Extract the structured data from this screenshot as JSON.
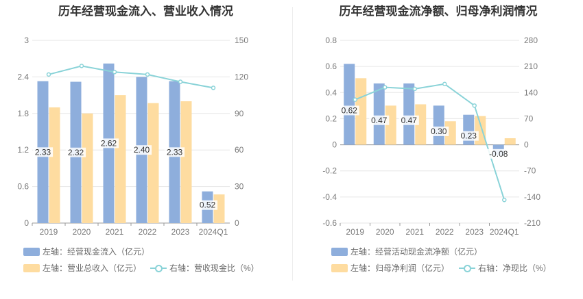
{
  "chart_data": [
    {
      "type": "bar",
      "title": "历年经营现金流入、营业收入情况",
      "categories": [
        "2019",
        "2020",
        "2021",
        "2022",
        "2023",
        "2024Q1"
      ],
      "series": [
        {
          "name": "左轴：经营现金流入（亿元）",
          "axis": "left",
          "type": "bar",
          "color": "#8eaedc",
          "values": [
            2.33,
            2.32,
            2.62,
            2.4,
            2.33,
            0.52
          ],
          "labels": [
            "2.33",
            "2.32",
            "2.62",
            "2.40",
            "2.33",
            "0.52"
          ]
        },
        {
          "name": "左轴：营业总收入（亿元）",
          "axis": "left",
          "type": "bar",
          "color": "#fedca0",
          "values": [
            1.9,
            1.8,
            2.1,
            1.97,
            2.0,
            0.47
          ]
        },
        {
          "name": "右轴：营收现金比（%）",
          "axis": "right",
          "type": "line",
          "color": "#8ad3d8",
          "values": [
            122,
            129,
            124,
            122,
            116,
            111
          ]
        }
      ],
      "left_axis": {
        "min": 0,
        "max": 3,
        "ticks": [
          "0",
          "0.6",
          "1.2",
          "1.8",
          "2.4",
          "3"
        ]
      },
      "right_axis": {
        "min": 0,
        "max": 150,
        "ticks": [
          "0",
          "30",
          "60",
          "90",
          "120",
          "150"
        ]
      },
      "grid": true,
      "legend": "bottom"
    },
    {
      "type": "bar",
      "title": "历年经营现金流净额、归母净利润情况",
      "categories": [
        "2019",
        "2020",
        "2021",
        "2022",
        "2023",
        "2024Q1"
      ],
      "series": [
        {
          "name": "左轴：经营活动现金流净额（亿元）",
          "axis": "left",
          "type": "bar",
          "color": "#8eaedc",
          "values": [
            0.62,
            0.47,
            0.47,
            0.3,
            0.23,
            -0.08
          ],
          "labels": [
            "0.62",
            "0.47",
            "0.47",
            "0.30",
            "0.23",
            "-0.08"
          ]
        },
        {
          "name": "左轴：归母净利润（亿元）",
          "axis": "left",
          "type": "bar",
          "color": "#fedca0",
          "values": [
            0.51,
            0.3,
            0.31,
            0.18,
            0.22,
            0.05
          ]
        },
        {
          "name": "右轴：净现比（%）",
          "axis": "right",
          "type": "line",
          "color": "#8ad3d8",
          "values": [
            121,
            154,
            150,
            163,
            105,
            -148
          ]
        }
      ],
      "left_axis": {
        "min": -0.6,
        "max": 0.8,
        "ticks": [
          "-0.6",
          "-0.4",
          "-0.2",
          "0",
          "0.2",
          "0.4",
          "0.6",
          "0.8"
        ]
      },
      "right_axis": {
        "min": -210,
        "max": 280,
        "ticks": [
          "-210",
          "-140",
          "-70",
          "0",
          "70",
          "140",
          "210",
          "280"
        ]
      },
      "grid": true,
      "legend": "bottom"
    }
  ]
}
